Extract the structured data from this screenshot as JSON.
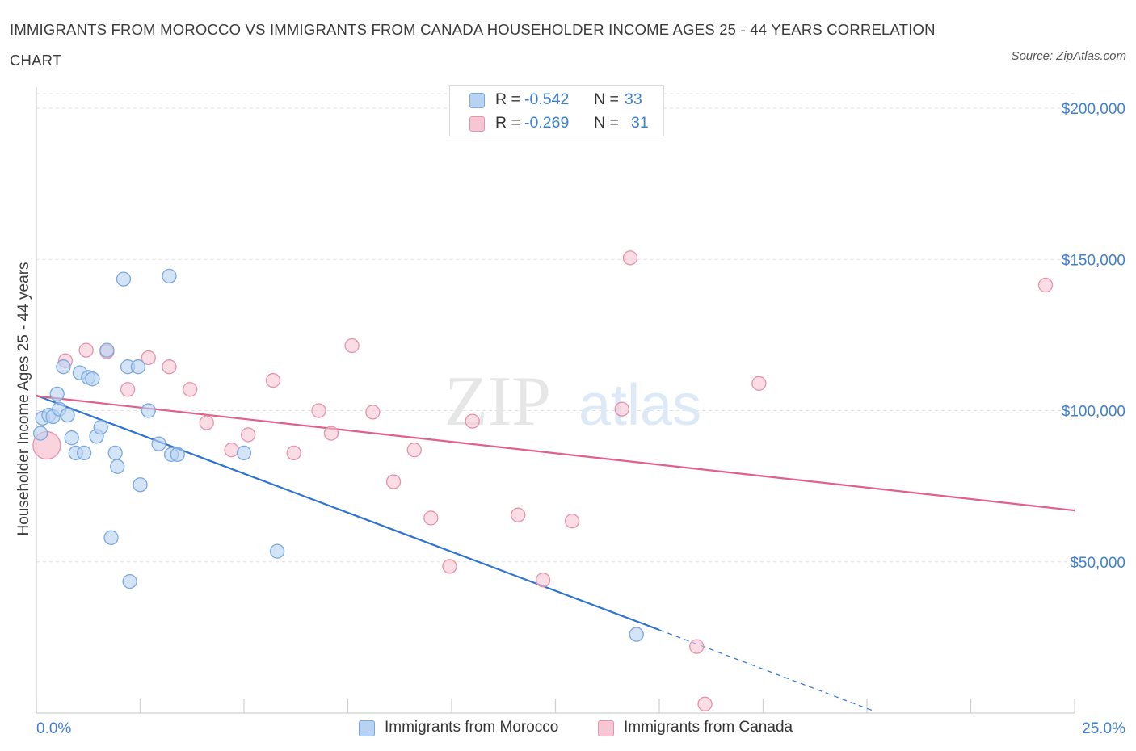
{
  "header": {
    "title": "IMMIGRANTS FROM MOROCCO VS IMMIGRANTS FROM CANADA HOUSEHOLDER INCOME AGES 25 - 44 YEARS CORRELATION CHART",
    "source": "Source: ZipAtlas.com"
  },
  "watermark": {
    "zip": "ZIP",
    "atlas": "atlas"
  },
  "colors": {
    "blue_fill": "#b8d2f2",
    "blue_stroke": "#7aa8e0",
    "blue_line": "#2e72d2",
    "pink_fill": "#f7c6d3",
    "pink_stroke": "#e891ab",
    "pink_line": "#e0608a",
    "axis_text": "#3d7fd4",
    "grid": "#e1e1e1"
  },
  "legend_top": {
    "series": [
      {
        "name": "Immigrants from Morocco",
        "r_label": "R =",
        "r_value": "-0.542",
        "n_label": "N =",
        "n_value": "33"
      },
      {
        "name": "Immigrants from Canada",
        "r_label": "R =",
        "r_value": "-0.269",
        "n_label": "N =",
        "n_value": "31"
      }
    ]
  },
  "legend_bottom": {
    "items": [
      "Immigrants from Morocco",
      "Immigrants from Canada"
    ]
  },
  "chart_data": {
    "type": "scatter",
    "title": "IMMIGRANTS FROM MOROCCO VS IMMIGRANTS FROM CANADA HOUSEHOLDER INCOME AGES 25 - 44 YEARS CORRELATION CHART",
    "xlabel": "",
    "ylabel": "Householder Income Ages 25 - 44 years",
    "xlim": [
      0,
      25
    ],
    "ylim": [
      0,
      200000
    ],
    "x_tick_labels": [
      "0.0%",
      "25.0%"
    ],
    "y_ticks": [
      50000,
      100000,
      150000,
      200000
    ],
    "y_tick_labels": [
      "$50,000",
      "$100,000",
      "$150,000",
      "$200,000"
    ],
    "grid": true,
    "legend_position": "top-center",
    "series": [
      {
        "name": "Immigrants from Morocco",
        "color": "blue",
        "points": [
          [
            0.1,
            92500
          ],
          [
            0.15,
            97500
          ],
          [
            0.3,
            98500
          ],
          [
            0.4,
            98000
          ],
          [
            0.5,
            105500
          ],
          [
            0.55,
            100500
          ],
          [
            0.65,
            114500
          ],
          [
            0.75,
            98500
          ],
          [
            0.85,
            91000
          ],
          [
            0.95,
            86000
          ],
          [
            1.05,
            112500
          ],
          [
            1.15,
            86000
          ],
          [
            1.25,
            111000
          ],
          [
            1.35,
            110500
          ],
          [
            1.45,
            91500
          ],
          [
            1.55,
            94500
          ],
          [
            1.7,
            120000
          ],
          [
            1.8,
            58000
          ],
          [
            1.9,
            86000
          ],
          [
            1.95,
            81500
          ],
          [
            2.1,
            143500
          ],
          [
            2.2,
            114500
          ],
          [
            2.25,
            43500
          ],
          [
            2.45,
            114500
          ],
          [
            2.5,
            75500
          ],
          [
            2.7,
            100000
          ],
          [
            2.95,
            89000
          ],
          [
            3.2,
            144500
          ],
          [
            3.25,
            85500
          ],
          [
            3.4,
            85500
          ],
          [
            5.0,
            86000
          ],
          [
            5.8,
            53500
          ],
          [
            14.45,
            26000
          ]
        ],
        "trend": {
          "x_start": 0,
          "y_start": 105000,
          "x_solid_end": 15.0,
          "y_solid_end": 27500,
          "x_dash_end": 20.2,
          "y_dash_end": 500
        }
      },
      {
        "name": "Immigrants from Canada",
        "color": "pink",
        "points": [
          [
            0.25,
            88500
          ],
          [
            0.7,
            116500
          ],
          [
            1.2,
            120000
          ],
          [
            1.7,
            119500
          ],
          [
            2.2,
            107000
          ],
          [
            2.7,
            117500
          ],
          [
            3.2,
            114500
          ],
          [
            3.7,
            107000
          ],
          [
            4.1,
            96000
          ],
          [
            4.7,
            87000
          ],
          [
            5.1,
            92000
          ],
          [
            5.7,
            110000
          ],
          [
            6.2,
            86000
          ],
          [
            6.8,
            100000
          ],
          [
            7.1,
            92500
          ],
          [
            7.6,
            121500
          ],
          [
            8.1,
            99500
          ],
          [
            8.6,
            76500
          ],
          [
            9.1,
            87000
          ],
          [
            9.5,
            64500
          ],
          [
            9.95,
            48500
          ],
          [
            10.5,
            96500
          ],
          [
            11.6,
            65500
          ],
          [
            12.2,
            44000
          ],
          [
            12.9,
            63500
          ],
          [
            14.1,
            100500
          ],
          [
            14.3,
            150500
          ],
          [
            15.9,
            22000
          ],
          [
            16.1,
            3000
          ],
          [
            17.4,
            109000
          ],
          [
            24.3,
            141500
          ]
        ],
        "trend": {
          "x_start": 0,
          "y_start": 104800,
          "x_end": 25,
          "y_end": 67000
        }
      }
    ]
  }
}
